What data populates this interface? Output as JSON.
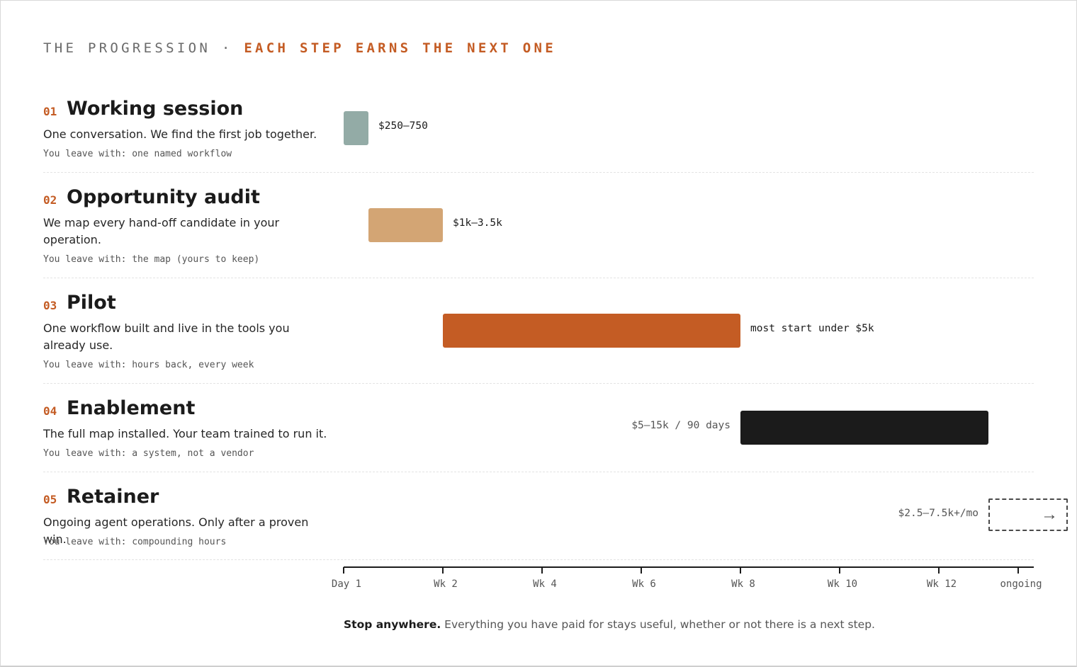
{
  "header": {
    "eyebrow_left": "THE PROGRESSION ·",
    "eyebrow_right": "EACH STEP EARNS THE NEXT ONE"
  },
  "steps": [
    {
      "num": "01",
      "title": "Working session",
      "desc": "One conversation. We find the first job together.",
      "leave": "You leave with: one named workflow"
    },
    {
      "num": "02",
      "title": "Opportunity audit",
      "desc": "We map every hand-off candidate in your operation.",
      "leave": "You leave with: the map (yours to keep)"
    },
    {
      "num": "03",
      "title": "Pilot",
      "desc": "One workflow built and live in the tools you already use.",
      "leave": "You leave with: hours back, every week"
    },
    {
      "num": "04",
      "title": "Enablement",
      "desc": "The full map installed. Your team trained to run it.",
      "leave": "You leave with: a system, not a vendor"
    },
    {
      "num": "05",
      "title": "Retainer",
      "desc": "Ongoing agent operations. Only after a proven win.",
      "leave": "You leave with: compounding hours"
    }
  ],
  "chart_data": {
    "type": "bar",
    "orientation": "horizontal-timeline",
    "x_axis": {
      "unit": "weeks",
      "ticks": [
        {
          "value": 0,
          "label": "Day 1"
        },
        {
          "value": 2,
          "label": "Wk 2"
        },
        {
          "value": 4,
          "label": "Wk 4"
        },
        {
          "value": 6,
          "label": "Wk 6"
        },
        {
          "value": 8,
          "label": "Wk 8"
        },
        {
          "value": 10,
          "label": "Wk 10"
        },
        {
          "value": 12,
          "label": "Wk 12"
        },
        {
          "value": 13.6,
          "label": "ongoing"
        }
      ],
      "range": [
        0,
        13.9
      ]
    },
    "bars": [
      {
        "step": "01",
        "start": 0,
        "end": 0.5,
        "color": "#93aba6",
        "label": "$250–750",
        "label_side": "right",
        "label_tone": "dark",
        "style": "solid"
      },
      {
        "step": "02",
        "start": 0.5,
        "end": 2,
        "color": "#d3a574",
        "label": "$1k–3.5k",
        "label_side": "right",
        "label_tone": "dark",
        "style": "solid"
      },
      {
        "step": "03",
        "start": 2,
        "end": 8,
        "color": "#c45c24",
        "label": "most start under $5k",
        "label_side": "right",
        "label_tone": "dark",
        "style": "solid"
      },
      {
        "step": "04",
        "start": 8,
        "end": 13,
        "color": "#1b1b1b",
        "label": "$5–15k / 90 days",
        "label_side": "left",
        "label_tone": "gray",
        "style": "solid"
      },
      {
        "step": "05",
        "start": 13,
        "end": 14.6,
        "color": "#4a4a4a",
        "label": "$2.5–7.5k+/mo",
        "label_side": "left",
        "label_tone": "gray",
        "style": "dashed-open"
      }
    ]
  },
  "footnote": {
    "bold": "Stop anywhere.",
    "rest": " Everything you have paid for stays useful, whether or not there is a next step."
  }
}
